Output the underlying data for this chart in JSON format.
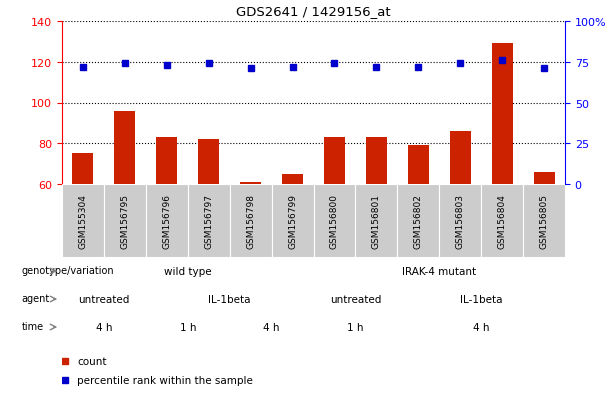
{
  "title": "GDS2641 / 1429156_at",
  "samples": [
    "GSM155304",
    "GSM156795",
    "GSM156796",
    "GSM156797",
    "GSM156798",
    "GSM156799",
    "GSM156800",
    "GSM156801",
    "GSM156802",
    "GSM156803",
    "GSM156804",
    "GSM156805"
  ],
  "counts": [
    75,
    96,
    83,
    82,
    61,
    65,
    83,
    83,
    79,
    86,
    129,
    66
  ],
  "percentiles": [
    72,
    74,
    73,
    74,
    71,
    72,
    74,
    72,
    72,
    74,
    76,
    71
  ],
  "ylim_left": [
    60,
    140
  ],
  "ylim_right": [
    0,
    100
  ],
  "yticks_left": [
    60,
    80,
    100,
    120,
    140
  ],
  "yticks_right": [
    0,
    25,
    50,
    75,
    100
  ],
  "bar_color": "#cc2200",
  "marker_color": "#0000cc",
  "tick_bg_color": "#cccccc",
  "genotype_wild": {
    "label": "wild type",
    "color": "#aaddaa",
    "span": [
      0,
      6
    ]
  },
  "genotype_irak": {
    "label": "IRAK-4 mutant",
    "color": "#55cc55",
    "span": [
      6,
      12
    ]
  },
  "agent_untreated1": {
    "label": "untreated",
    "color": "#aaaadd",
    "span": [
      0,
      2
    ]
  },
  "agent_il1beta1": {
    "label": "IL-1beta",
    "color": "#7777cc",
    "span": [
      2,
      6
    ]
  },
  "agent_untreated2": {
    "label": "untreated",
    "color": "#aaaadd",
    "span": [
      6,
      8
    ]
  },
  "agent_il1beta2": {
    "label": "IL-1beta",
    "color": "#7777cc",
    "span": [
      8,
      12
    ]
  },
  "time_4h_1": {
    "label": "4 h",
    "color": "#cc6655",
    "span": [
      0,
      2
    ]
  },
  "time_1h_1": {
    "label": "1 h",
    "color": "#ffbbbb",
    "span": [
      2,
      4
    ]
  },
  "time_4h_2": {
    "label": "4 h",
    "color": "#cc6655",
    "span": [
      4,
      6
    ]
  },
  "time_1h_2": {
    "label": "1 h",
    "color": "#ffbbbb",
    "span": [
      6,
      8
    ]
  },
  "time_4h_3": {
    "label": "4 h",
    "color": "#cc6655",
    "span": [
      8,
      12
    ]
  },
  "row_labels": [
    "genotype/variation",
    "agent",
    "time"
  ],
  "legend_count_color": "#cc2200",
  "legend_percentile_color": "#0000cc",
  "legend_count_label": "count",
  "legend_percentile_label": "percentile rank within the sample"
}
